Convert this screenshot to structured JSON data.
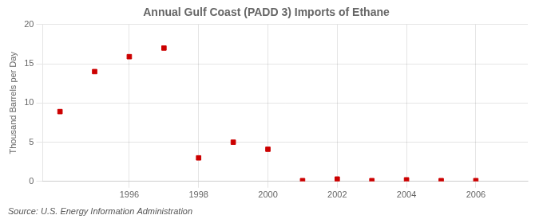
{
  "chart_data": {
    "type": "scatter",
    "title": "Annual Gulf Coast (PADD 3) Imports of Ethane",
    "ylabel": "Thousand Barrels per Day",
    "annotations": [
      "Source: U.S. Energy Information Administration"
    ],
    "x": [
      1994,
      1995,
      1996,
      1997,
      1998,
      1999,
      2000,
      2001,
      2002,
      2003,
      2004,
      2005,
      2006
    ],
    "values": [
      8.9,
      14.0,
      15.9,
      17.0,
      3.0,
      5.0,
      4.1,
      0.1,
      0.3,
      0.1,
      0.2,
      0.1,
      0.1
    ],
    "color": "#cc0000",
    "marker": "square",
    "xlim": [
      1993.5,
      2007.5
    ],
    "xticks": [
      1996,
      1998,
      2000,
      2002,
      2004,
      2006
    ],
    "ylim": [
      0,
      20
    ],
    "yticks": [
      0,
      5,
      10,
      15,
      20
    ],
    "grid": true
  }
}
